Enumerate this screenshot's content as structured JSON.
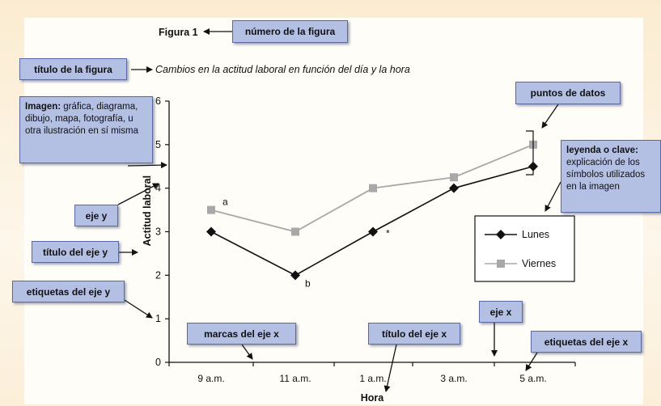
{
  "figure_number": "Figura 1",
  "figure_title": "Cambios en la actitud laboral en función del día y la hora",
  "callouts": {
    "figure_number": "número de la figura",
    "figure_title": "título de la figura",
    "image_bold": "Imagen:",
    "image_rest": " gráfica, diagrama, dibujo, mapa, fotografía, u otra ilustración en sí misma",
    "y_axis": "eje y",
    "y_axis_title": "título del eje y",
    "y_axis_labels": "etiquetas del eje y",
    "x_axis_ticks": "marcas del eje x",
    "x_axis_title": "título del eje x",
    "x_axis": "eje x",
    "x_axis_labels": "etiquetas del eje x",
    "data_points": "puntos de datos",
    "legend_bold": "leyenda o clave:",
    "legend_rest": "explicación de los símbolos utilizados en la imagen"
  },
  "colors": {
    "callout_fill": "#b3bfe3",
    "lunes": "#111111",
    "viernes": "#a8a8a8"
  },
  "chart_data": {
    "type": "line",
    "categories": [
      "9 a.m.",
      "11 a.m.",
      "1 a.m.",
      "3 a.m.",
      "5 a.m."
    ],
    "xlabel": "Hora",
    "ylabel": "Actitud laboral",
    "ylim": [
      0,
      6
    ],
    "yticks": [
      "0",
      "1",
      "2",
      "3",
      "4",
      "5",
      "6"
    ],
    "grid": false,
    "legend_position": "right",
    "series": [
      {
        "name": "Lunes",
        "values": [
          3,
          2,
          3,
          4,
          4.5
        ],
        "marker": "diamond"
      },
      {
        "name": "Viernes",
        "values": [
          3.5,
          3,
          4,
          4.25,
          5
        ],
        "marker": "square"
      }
    ],
    "annotations": [
      {
        "text": "a",
        "category": "9 a.m.",
        "series": "Viernes"
      },
      {
        "text": "b",
        "category": "11 a.m.",
        "series": "Lunes"
      },
      {
        "text": "*",
        "category": "1 a.m.",
        "series": "Lunes"
      }
    ]
  }
}
